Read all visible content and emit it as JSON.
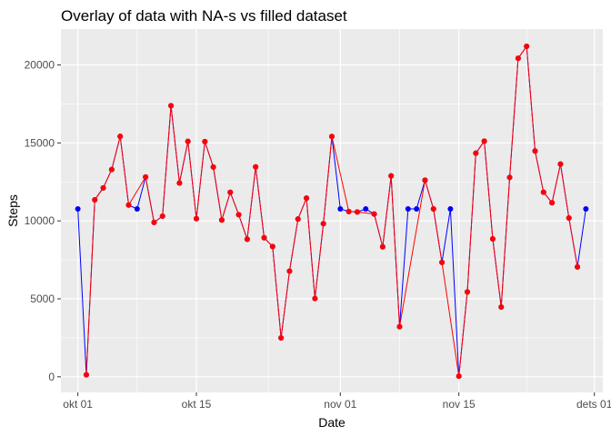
{
  "chart_data": {
    "type": "line",
    "title": "Overlay of data with NA-s vs filled dataset",
    "xlabel": "Date",
    "ylabel": "Steps",
    "xlim": [
      "2012-09-29",
      "2012-12-02"
    ],
    "ylim": [
      -1000,
      22300
    ],
    "x_ticks": [
      {
        "date": "2012-10-01",
        "label": "okt 01"
      },
      {
        "date": "2012-10-15",
        "label": "okt 15"
      },
      {
        "date": "2012-11-01",
        "label": "nov 01"
      },
      {
        "date": "2012-11-15",
        "label": "nov 15"
      },
      {
        "date": "2012-12-01",
        "label": "dets 01"
      }
    ],
    "y_ticks": [
      0,
      5000,
      10000,
      15000,
      20000
    ],
    "y_tick_labels": [
      "0",
      "5000",
      "10000",
      "15000",
      "20000"
    ],
    "grid": true,
    "legend": "none",
    "series": [
      {
        "color": "#0000ff",
        "points": [
          [
            "2012-10-01",
            10766
          ],
          [
            "2012-10-02",
            126
          ],
          [
            "2012-10-03",
            11352
          ],
          [
            "2012-10-04",
            12116
          ],
          [
            "2012-10-05",
            13294
          ],
          [
            "2012-10-06",
            15420
          ],
          [
            "2012-10-07",
            11015
          ],
          [
            "2012-10-08",
            10766
          ],
          [
            "2012-10-09",
            12811
          ],
          [
            "2012-10-10",
            9900
          ],
          [
            "2012-10-11",
            10304
          ],
          [
            "2012-10-12",
            17382
          ],
          [
            "2012-10-13",
            12426
          ],
          [
            "2012-10-14",
            15098
          ],
          [
            "2012-10-15",
            10139
          ],
          [
            "2012-10-16",
            15084
          ],
          [
            "2012-10-17",
            13452
          ],
          [
            "2012-10-18",
            10056
          ],
          [
            "2012-10-19",
            11829
          ],
          [
            "2012-10-20",
            10395
          ],
          [
            "2012-10-21",
            8821
          ],
          [
            "2012-10-22",
            13460
          ],
          [
            "2012-10-23",
            8918
          ],
          [
            "2012-10-24",
            8355
          ],
          [
            "2012-10-25",
            2492
          ],
          [
            "2012-10-26",
            6778
          ],
          [
            "2012-10-27",
            10119
          ],
          [
            "2012-10-28",
            11458
          ],
          [
            "2012-10-29",
            5018
          ],
          [
            "2012-10-30",
            9819
          ],
          [
            "2012-10-31",
            15414
          ],
          [
            "2012-11-01",
            10766
          ],
          [
            "2012-11-02",
            10600
          ],
          [
            "2012-11-03",
            10571
          ],
          [
            "2012-11-04",
            10766
          ],
          [
            "2012-11-05",
            10439
          ],
          [
            "2012-11-06",
            8334
          ],
          [
            "2012-11-07",
            12883
          ],
          [
            "2012-11-08",
            3219
          ],
          [
            "2012-11-09",
            10766
          ],
          [
            "2012-11-10",
            10766
          ],
          [
            "2012-11-11",
            12608
          ],
          [
            "2012-11-12",
            10765
          ],
          [
            "2012-11-13",
            7336
          ],
          [
            "2012-11-14",
            10766
          ],
          [
            "2012-11-15",
            41
          ],
          [
            "2012-11-16",
            5441
          ],
          [
            "2012-11-17",
            14339
          ],
          [
            "2012-11-18",
            15110
          ],
          [
            "2012-11-19",
            8841
          ],
          [
            "2012-11-20",
            4472
          ],
          [
            "2012-11-21",
            12787
          ],
          [
            "2012-11-22",
            20427
          ],
          [
            "2012-11-23",
            21194
          ],
          [
            "2012-11-24",
            14478
          ],
          [
            "2012-11-25",
            11834
          ],
          [
            "2012-11-26",
            11162
          ],
          [
            "2012-11-27",
            13646
          ],
          [
            "2012-11-28",
            10183
          ],
          [
            "2012-11-29",
            7047
          ],
          [
            "2012-11-30",
            10766
          ]
        ]
      },
      {
        "color": "#ff0000",
        "points": [
          [
            "2012-10-02",
            126
          ],
          [
            "2012-10-03",
            11352
          ],
          [
            "2012-10-04",
            12116
          ],
          [
            "2012-10-05",
            13294
          ],
          [
            "2012-10-06",
            15420
          ],
          [
            "2012-10-07",
            11015
          ],
          [
            "2012-10-09",
            12811
          ],
          [
            "2012-10-10",
            9900
          ],
          [
            "2012-10-11",
            10304
          ],
          [
            "2012-10-12",
            17382
          ],
          [
            "2012-10-13",
            12426
          ],
          [
            "2012-10-14",
            15098
          ],
          [
            "2012-10-15",
            10139
          ],
          [
            "2012-10-16",
            15084
          ],
          [
            "2012-10-17",
            13452
          ],
          [
            "2012-10-18",
            10056
          ],
          [
            "2012-10-19",
            11829
          ],
          [
            "2012-10-20",
            10395
          ],
          [
            "2012-10-21",
            8821
          ],
          [
            "2012-10-22",
            13460
          ],
          [
            "2012-10-23",
            8918
          ],
          [
            "2012-10-24",
            8355
          ],
          [
            "2012-10-25",
            2492
          ],
          [
            "2012-10-26",
            6778
          ],
          [
            "2012-10-27",
            10119
          ],
          [
            "2012-10-28",
            11458
          ],
          [
            "2012-10-29",
            5018
          ],
          [
            "2012-10-30",
            9819
          ],
          [
            "2012-10-31",
            15414
          ],
          [
            "2012-11-02",
            10600
          ],
          [
            "2012-11-03",
            10571
          ],
          [
            "2012-11-05",
            10439
          ],
          [
            "2012-11-06",
            8334
          ],
          [
            "2012-11-07",
            12883
          ],
          [
            "2012-11-08",
            3219
          ],
          [
            "2012-11-11",
            12608
          ],
          [
            "2012-11-12",
            10765
          ],
          [
            "2012-11-13",
            7336
          ],
          [
            "2012-11-15",
            41
          ],
          [
            "2012-11-16",
            5441
          ],
          [
            "2012-11-17",
            14339
          ],
          [
            "2012-11-18",
            15110
          ],
          [
            "2012-11-19",
            8841
          ],
          [
            "2012-11-20",
            4472
          ],
          [
            "2012-11-21",
            12787
          ],
          [
            "2012-11-22",
            20427
          ],
          [
            "2012-11-23",
            21194
          ],
          [
            "2012-11-24",
            14478
          ],
          [
            "2012-11-25",
            11834
          ],
          [
            "2012-11-26",
            11162
          ],
          [
            "2012-11-27",
            13646
          ],
          [
            "2012-11-28",
            10183
          ],
          [
            "2012-11-29",
            7047
          ]
        ]
      }
    ],
    "colors": {
      "panel_background": "#ebebeb",
      "grid_major": "#ffffff",
      "tick": "#333333",
      "tick_label": "#4d4d4d"
    }
  }
}
